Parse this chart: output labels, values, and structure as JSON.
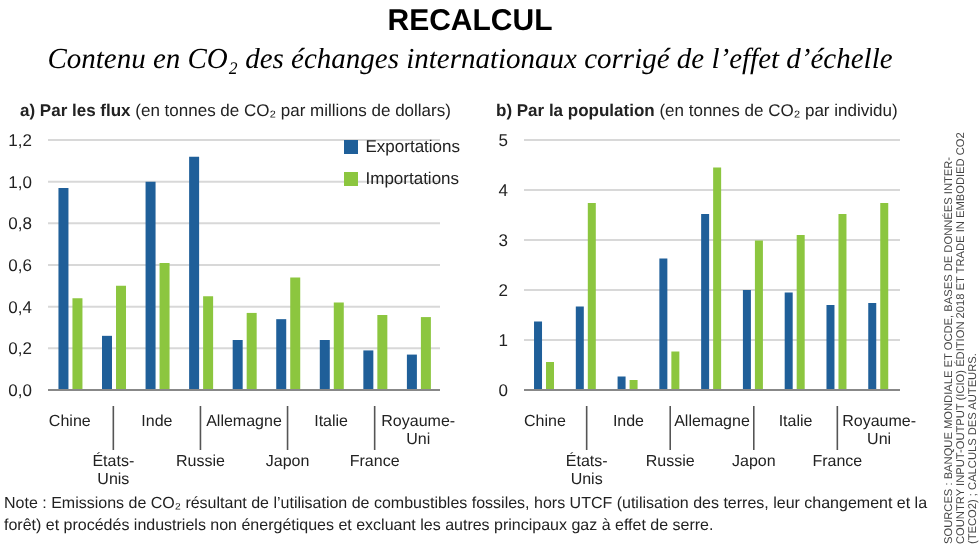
{
  "chart_data": [
    {
      "type": "other",
      "title": "RECALCUL",
      "subtitle": "Contenu en CO₂ des échanges internationaux corrigé de l’effet d’échelle",
      "annotations": [
        "Note : Emissions de CO₂ résultant de l’utilisation de combustibles fossiles, hors UTCF (utilisation des terres, leur changement et la forêt) et procédés industriels non énergétiques et excluant les autres principaux gaz à effet de serre.",
        "SOURCES : BANQUE MONDIALE ET OCDE, BASES DE DONNÉES INTER-COUNTRY INPUT-OUTPUT (ICIO) ÉDITION 2018 ET TRADE IN EMBODIED CO2 (TECO2) ; CALCULS DES AUTEURS."
      ]
    },
    {
      "type": "bar",
      "title": "a) Par les flux",
      "subtitle": "(en tonnes de CO₂ par millions de dollars)",
      "categories": [
        "Chine",
        "États-Unis",
        "Inde",
        "Russie",
        "Allemagne",
        "Japon",
        "Italie",
        "France",
        "Royaume-Uni"
      ],
      "series": [
        {
          "name": "Exportations",
          "color": "#1f5f99",
          "values": [
            0.97,
            0.26,
            1.0,
            1.12,
            0.24,
            0.34,
            0.24,
            0.19,
            0.17
          ]
        },
        {
          "name": "Importations",
          "color": "#8cc63f",
          "values": [
            0.44,
            0.5,
            0.61,
            0.45,
            0.37,
            0.54,
            0.42,
            0.36,
            0.35
          ]
        }
      ],
      "ylim": [
        0,
        1.2
      ],
      "yticks": [
        {
          "value": 0,
          "label": "0,0"
        },
        {
          "value": 0.2,
          "label": "0,2"
        },
        {
          "value": 0.4,
          "label": "0,4"
        },
        {
          "value": 0.6,
          "label": "0,6"
        },
        {
          "value": 0.8,
          "label": "0,8"
        },
        {
          "value": 1.0,
          "label": "1,0"
        },
        {
          "value": 1.2,
          "label": "1,2"
        }
      ],
      "grid": "y",
      "legend": "top right"
    },
    {
      "type": "bar",
      "title": "b) Par la population",
      "subtitle": "(en tonnes de CO₂ par individu)",
      "categories": [
        "Chine",
        "États-Unis",
        "Inde",
        "Russie",
        "Allemagne",
        "Japon",
        "Italie",
        "France",
        "Royaume-Uni"
      ],
      "series": [
        {
          "color": "#1f5f99",
          "values": [
            1.37,
            1.67,
            0.27,
            2.63,
            3.52,
            2.0,
            1.95,
            1.7,
            1.74
          ]
        },
        {
          "color": "#8cc63f",
          "values": [
            0.56,
            3.74,
            0.2,
            0.77,
            4.45,
            2.99,
            3.1,
            3.52,
            3.74
          ]
        }
      ],
      "ylim": [
        0,
        5
      ],
      "yticks": [
        0,
        1,
        2,
        3,
        4,
        5
      ],
      "grid": "y"
    }
  ]
}
